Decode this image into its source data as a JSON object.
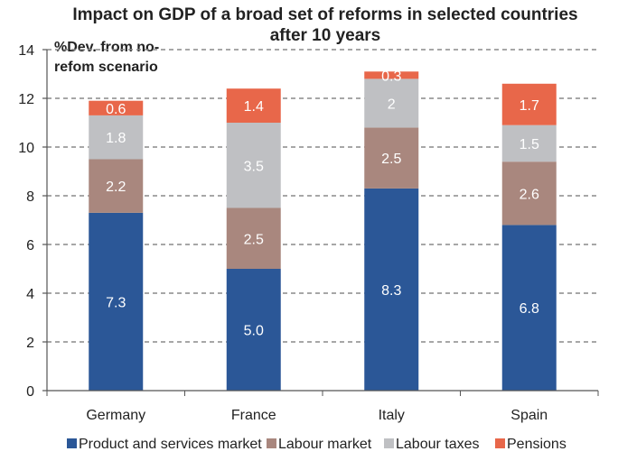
{
  "chart_data": {
    "type": "bar",
    "stacked": true,
    "title": "Impact on GDP of a broad set of reforms in selected countries after 10 years",
    "title_lines": [
      "Impact on GDP of a broad set of reforms in selected countries",
      "after 10 years"
    ],
    "ylabel": "%Dev. from no-refom scenario",
    "ylabel_lines": [
      "%Dev. from no-",
      "refom scenario"
    ],
    "xlabel": "",
    "ylim": [
      0,
      14
    ],
    "yticks": [
      0,
      2,
      4,
      6,
      8,
      10,
      12,
      14
    ],
    "grid": true,
    "legend_position": "bottom",
    "categories": [
      "Germany",
      "France",
      "Italy",
      "Spain"
    ],
    "series": [
      {
        "name": "Product and services market",
        "color": "#2b5797",
        "values": [
          7.3,
          5.0,
          8.3,
          6.8
        ],
        "labels": [
          "7.3",
          "5.0",
          "8.3",
          "6.8"
        ]
      },
      {
        "name": "Labour market",
        "color": "#a9877e",
        "values": [
          2.2,
          2.5,
          2.5,
          2.6
        ],
        "labels": [
          "2.2",
          "2.5",
          "2.5",
          "2.6"
        ]
      },
      {
        "name": "Labour taxes",
        "color": "#bfc0c3",
        "values": [
          1.8,
          3.5,
          2.0,
          1.5
        ],
        "labels": [
          "1.8",
          "3.5",
          "2",
          "1.5"
        ]
      },
      {
        "name": "Pensions",
        "color": "#e8674a",
        "values": [
          0.6,
          1.4,
          0.3,
          1.7
        ],
        "labels": [
          "0.6",
          "1.4",
          "0.3",
          "1.7"
        ]
      }
    ]
  }
}
